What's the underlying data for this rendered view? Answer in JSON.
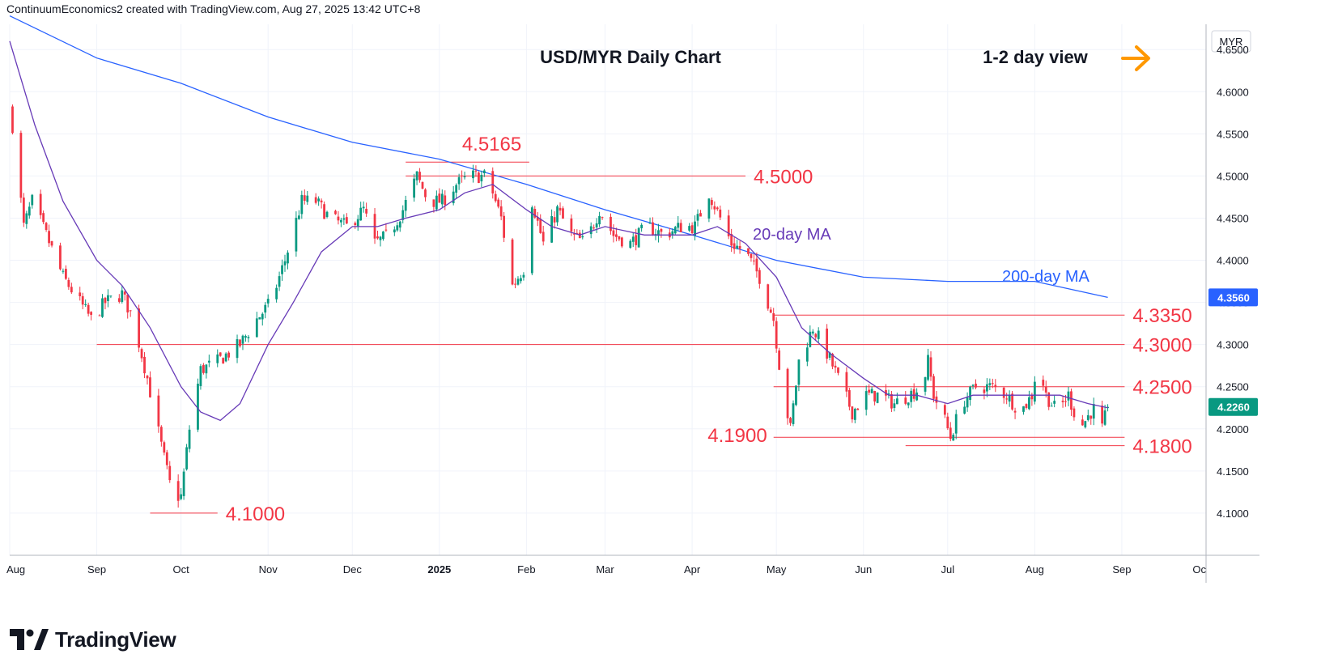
{
  "header": {
    "credit": "ContinuumEconomics2 created with TradingView.com, Aug 27, 2025 13:42 UTC+8"
  },
  "brand": {
    "name": "TradingView",
    "logo_icon": "tradingview-logo-icon"
  },
  "annotations": {
    "title": "USD/MYR Daily Chart",
    "view": "1-2 day view",
    "view_arrow_icon": "arrow-right-icon",
    "ma20_label": "20-day MA",
    "ma200_label": "200-day MA"
  },
  "colors": {
    "up": "#089981",
    "down": "#f23645",
    "level": "#f23645",
    "ma20": "#673ab7",
    "ma200": "#2962ff",
    "arrow": "#ff9800",
    "grid": "#f0f3fa"
  },
  "chart_data": {
    "type": "candlestick",
    "title": "USD/MYR Daily Chart",
    "currency": "MYR",
    "ylim": [
      4.05,
      4.68
    ],
    "y_ticks": [
      "4.1000",
      "4.1500",
      "4.2000",
      "4.2500",
      "4.3000",
      "4.3500",
      "4.4000",
      "4.4500",
      "4.5000",
      "4.5500",
      "4.6000",
      "4.6500"
    ],
    "x_ticks": [
      {
        "date": "2024-08-01",
        "label": "Aug"
      },
      {
        "date": "2024-09-01",
        "label": "Sep"
      },
      {
        "date": "2024-10-01",
        "label": "Oct"
      },
      {
        "date": "2024-11-01",
        "label": "Nov"
      },
      {
        "date": "2024-12-01",
        "label": "Dec"
      },
      {
        "date": "2025-01-01",
        "label": "2025"
      },
      {
        "date": "2025-02-01",
        "label": "Feb"
      },
      {
        "date": "2025-03-01",
        "label": "Mar"
      },
      {
        "date": "2025-04-01",
        "label": "Apr"
      },
      {
        "date": "2025-05-01",
        "label": "May"
      },
      {
        "date": "2025-06-01",
        "label": "Jun"
      },
      {
        "date": "2025-07-01",
        "label": "Jul"
      },
      {
        "date": "2025-08-01",
        "label": "Aug"
      },
      {
        "date": "2025-09-01",
        "label": "Sep"
      },
      {
        "date": "2025-10-01",
        "label": "Oc"
      }
    ],
    "last_price": "4.2260",
    "ma200_value": "4.3560",
    "close_path": [
      [
        "2024-08-02",
        4.56
      ],
      [
        "2024-08-06",
        4.44
      ],
      [
        "2024-08-09",
        4.47
      ],
      [
        "2024-08-14",
        4.43
      ],
      [
        "2024-08-20",
        4.38
      ],
      [
        "2024-08-26",
        4.35
      ],
      [
        "2024-08-30",
        4.33
      ],
      [
        "2024-09-04",
        4.35
      ],
      [
        "2024-09-10",
        4.36
      ],
      [
        "2024-09-14",
        4.33
      ],
      [
        "2024-09-19",
        4.26
      ],
      [
        "2024-09-24",
        4.18
      ],
      [
        "2024-09-28",
        4.12
      ],
      [
        "2024-10-01",
        4.12
      ],
      [
        "2024-10-04",
        4.2
      ],
      [
        "2024-10-08",
        4.27
      ],
      [
        "2024-10-14",
        4.28
      ],
      [
        "2024-10-22",
        4.3
      ],
      [
        "2024-10-28",
        4.33
      ],
      [
        "2024-11-02",
        4.35
      ],
      [
        "2024-11-07",
        4.4
      ],
      [
        "2024-11-13",
        4.47
      ],
      [
        "2024-11-18",
        4.47
      ],
      [
        "2024-11-23",
        4.45
      ],
      [
        "2024-11-29",
        4.44
      ],
      [
        "2024-12-05",
        4.46
      ],
      [
        "2024-12-09",
        4.42
      ],
      [
        "2024-12-14",
        4.43
      ],
      [
        "2024-12-19",
        4.46
      ],
      [
        "2024-12-24",
        4.5
      ],
      [
        "2024-12-28",
        4.47
      ],
      [
        "2025-01-02",
        4.47
      ],
      [
        "2025-01-07",
        4.49
      ],
      [
        "2025-01-12",
        4.5
      ],
      [
        "2025-01-18",
        4.5
      ],
      [
        "2025-01-23",
        4.45
      ],
      [
        "2025-01-27",
        4.37
      ],
      [
        "2025-01-31",
        4.39
      ],
      [
        "2025-02-03",
        4.47
      ],
      [
        "2025-02-07",
        4.42
      ],
      [
        "2025-02-12",
        4.46
      ],
      [
        "2025-02-17",
        4.43
      ],
      [
        "2025-02-22",
        4.42
      ],
      [
        "2025-02-27",
        4.46
      ],
      [
        "2025-03-04",
        4.43
      ],
      [
        "2025-03-10",
        4.42
      ],
      [
        "2025-03-16",
        4.44
      ],
      [
        "2025-03-22",
        4.43
      ],
      [
        "2025-03-28",
        4.44
      ],
      [
        "2025-04-02",
        4.44
      ],
      [
        "2025-04-07",
        4.48
      ],
      [
        "2025-04-11",
        4.45
      ],
      [
        "2025-04-15",
        4.42
      ],
      [
        "2025-04-20",
        4.41
      ],
      [
        "2025-04-25",
        4.38
      ],
      [
        "2025-04-30",
        4.33
      ],
      [
        "2025-05-03",
        4.25
      ],
      [
        "2025-05-06",
        4.2
      ],
      [
        "2025-05-09",
        4.28
      ],
      [
        "2025-05-14",
        4.32
      ],
      [
        "2025-05-19",
        4.29
      ],
      [
        "2025-05-23",
        4.26
      ],
      [
        "2025-05-28",
        4.22
      ],
      [
        "2025-06-02",
        4.24
      ],
      [
        "2025-06-07",
        4.24
      ],
      [
        "2025-06-12",
        4.23
      ],
      [
        "2025-06-17",
        4.24
      ],
      [
        "2025-06-22",
        4.25
      ],
      [
        "2025-06-24",
        4.28
      ],
      [
        "2025-06-26",
        4.24
      ],
      [
        "2025-06-30",
        4.21
      ],
      [
        "2025-07-02",
        4.19
      ],
      [
        "2025-07-06",
        4.23
      ],
      [
        "2025-07-11",
        4.25
      ],
      [
        "2025-07-17",
        4.25
      ],
      [
        "2025-07-22",
        4.24
      ],
      [
        "2025-07-27",
        4.22
      ],
      [
        "2025-07-31",
        4.24
      ],
      [
        "2025-08-02",
        4.28
      ],
      [
        "2025-08-05",
        4.24
      ],
      [
        "2025-08-09",
        4.22
      ],
      [
        "2025-08-13",
        4.24
      ],
      [
        "2025-08-17",
        4.2
      ],
      [
        "2025-08-21",
        4.22
      ],
      [
        "2025-08-24",
        4.23
      ],
      [
        "2025-08-25",
        4.2
      ],
      [
        "2025-08-27",
        4.226
      ]
    ],
    "ma20_path": [
      [
        "2024-08-01",
        4.66
      ],
      [
        "2024-08-10",
        4.56
      ],
      [
        "2024-08-20",
        4.47
      ],
      [
        "2024-09-01",
        4.4
      ],
      [
        "2024-09-10",
        4.37
      ],
      [
        "2024-09-20",
        4.32
      ],
      [
        "2024-10-01",
        4.25
      ],
      [
        "2024-10-08",
        4.22
      ],
      [
        "2024-10-15",
        4.21
      ],
      [
        "2024-10-22",
        4.23
      ],
      [
        "2024-11-01",
        4.3
      ],
      [
        "2024-11-10",
        4.35
      ],
      [
        "2024-11-20",
        4.41
      ],
      [
        "2024-12-01",
        4.44
      ],
      [
        "2024-12-10",
        4.44
      ],
      [
        "2024-12-20",
        4.45
      ],
      [
        "2025-01-01",
        4.46
      ],
      [
        "2025-01-10",
        4.48
      ],
      [
        "2025-01-20",
        4.49
      ],
      [
        "2025-02-01",
        4.46
      ],
      [
        "2025-02-10",
        4.44
      ],
      [
        "2025-02-20",
        4.43
      ],
      [
        "2025-03-01",
        4.44
      ],
      [
        "2025-03-15",
        4.43
      ],
      [
        "2025-04-01",
        4.43
      ],
      [
        "2025-04-10",
        4.44
      ],
      [
        "2025-04-20",
        4.42
      ],
      [
        "2025-05-01",
        4.38
      ],
      [
        "2025-05-10",
        4.32
      ],
      [
        "2025-05-20",
        4.29
      ],
      [
        "2025-06-01",
        4.26
      ],
      [
        "2025-06-10",
        4.24
      ],
      [
        "2025-06-20",
        4.24
      ],
      [
        "2025-07-01",
        4.23
      ],
      [
        "2025-07-10",
        4.24
      ],
      [
        "2025-07-20",
        4.24
      ],
      [
        "2025-08-01",
        4.24
      ],
      [
        "2025-08-10",
        4.24
      ],
      [
        "2025-08-20",
        4.23
      ],
      [
        "2025-08-27",
        4.225
      ]
    ],
    "ma200_path": [
      [
        "2024-08-01",
        4.69
      ],
      [
        "2024-09-01",
        4.64
      ],
      [
        "2024-10-01",
        4.61
      ],
      [
        "2024-11-01",
        4.57
      ],
      [
        "2024-12-01",
        4.54
      ],
      [
        "2025-01-01",
        4.52
      ],
      [
        "2025-02-01",
        4.49
      ],
      [
        "2025-03-01",
        4.46
      ],
      [
        "2025-04-01",
        4.43
      ],
      [
        "2025-05-01",
        4.4
      ],
      [
        "2025-06-01",
        4.38
      ],
      [
        "2025-07-01",
        4.375
      ],
      [
        "2025-08-01",
        4.375
      ],
      [
        "2025-08-27",
        4.356
      ]
    ],
    "levels": [
      {
        "value": 4.5165,
        "label": "4.5165",
        "start": "2024-12-20",
        "end": "2025-02-02",
        "label_side": "above"
      },
      {
        "value": 4.5,
        "label": "4.5000",
        "start": "2024-12-20",
        "end": "2025-04-20",
        "label_side": "right"
      },
      {
        "value": 4.335,
        "label": "4.3350",
        "start": "2025-04-30",
        "end": "2025-09-02",
        "label_side": "right"
      },
      {
        "value": 4.3,
        "label": "4.3000",
        "start": "2024-09-01",
        "end": "2025-09-02",
        "label_side": "right"
      },
      {
        "value": 4.25,
        "label": "4.2500",
        "start": "2025-04-30",
        "end": "2025-09-02",
        "label_side": "right"
      },
      {
        "value": 4.19,
        "label": "4.1900",
        "start": "2025-04-30",
        "end": "2025-09-02",
        "label_side": "left"
      },
      {
        "value": 4.18,
        "label": "4.1800",
        "start": "2025-06-16",
        "end": "2025-09-02",
        "label_side": "right"
      },
      {
        "value": 4.1,
        "label": "4.1000",
        "start": "2024-09-20",
        "end": "2024-10-14",
        "label_side": "right"
      }
    ]
  }
}
